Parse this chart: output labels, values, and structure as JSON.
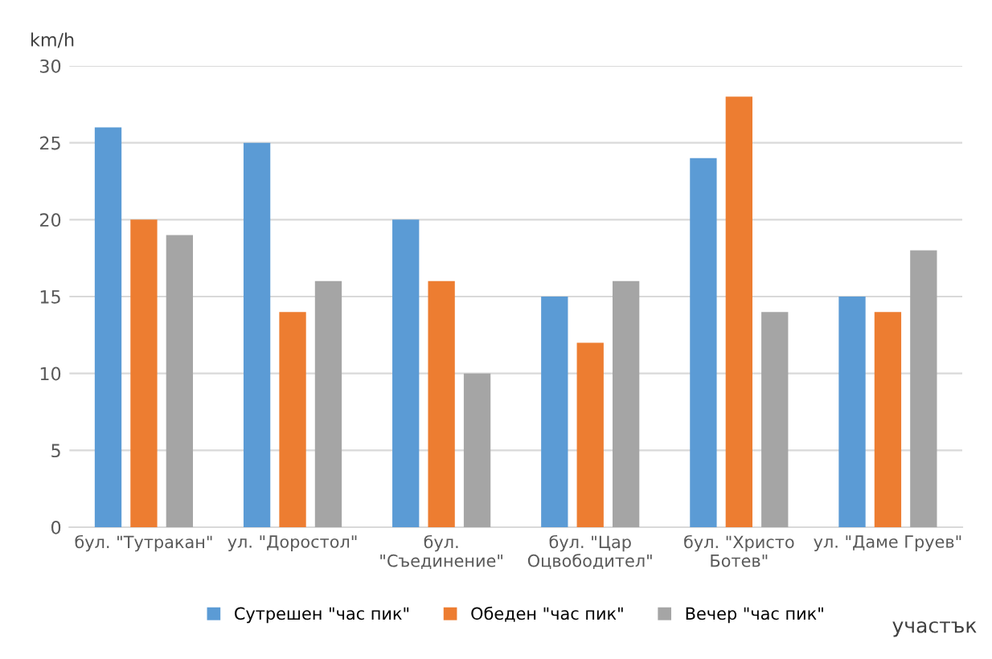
{
  "chart_data": {
    "type": "bar",
    "ylabel": "km/h",
    "xlabel": "участък",
    "categories": [
      "бул. \"Тутракан\"",
      "ул. \"Доростол\"",
      "бул.\n\"Съединение\"",
      "бул. \"Цар\nОцвободител\"",
      "бул. \"Христо\nБотев\"",
      "ул. \"Даме Груев\""
    ],
    "series": [
      {
        "name": "Сутрешен \"час пик\"",
        "color": "#5b9bd5",
        "values": [
          26,
          25,
          20,
          15,
          24,
          15
        ]
      },
      {
        "name": "Обеден \"час пик\"",
        "color": "#ed7d31",
        "values": [
          20,
          14,
          16,
          12,
          28,
          14
        ]
      },
      {
        "name": "Вечер \"час пик\"",
        "color": "#a5a5a5",
        "values": [
          19,
          16,
          10,
          16,
          14,
          18
        ]
      }
    ],
    "ylim": [
      0,
      30
    ],
    "yticks": [
      0,
      5,
      10,
      15,
      20,
      25,
      30
    ],
    "grid": "y",
    "legend": "bottom"
  }
}
